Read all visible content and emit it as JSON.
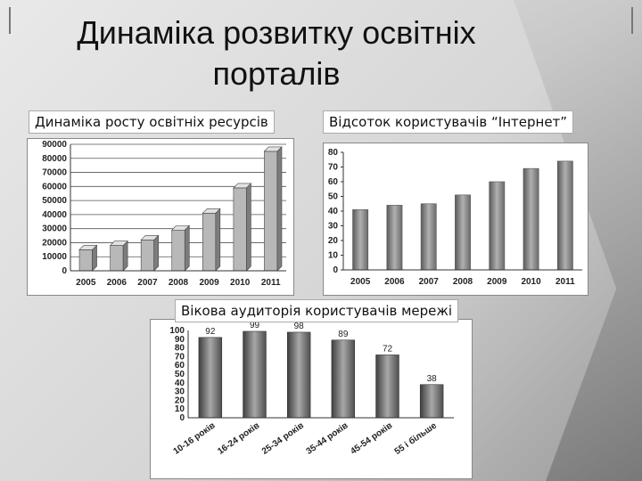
{
  "title": "Динаміка розвитку освітніх порталів",
  "chart_data": [
    {
      "type": "bar",
      "title": "Динаміка росту освітніх ресурсів",
      "categories": [
        "2005",
        "2006",
        "2007",
        "2008",
        "2009",
        "2010",
        "2011"
      ],
      "values": [
        15000,
        18000,
        22000,
        29000,
        41000,
        59000,
        85000
      ],
      "ylim": [
        0,
        90000
      ],
      "yticks": [
        "0",
        "10000",
        "20000",
        "30000",
        "40000",
        "50000",
        "60000",
        "70000",
        "80000",
        "90000"
      ],
      "grid": true,
      "colors": {
        "bar_front": "#b8b8b8",
        "bar_side": "#7c7c7c",
        "bar_top": "#e2e2e2"
      }
    },
    {
      "type": "bar",
      "title": "Відсоток користувачів “Інтернет”",
      "categories": [
        "2005",
        "2006",
        "2007",
        "2008",
        "2009",
        "2010",
        "2011"
      ],
      "values": [
        41,
        44,
        45,
        51,
        60,
        69,
        74
      ],
      "ylim": [
        0,
        80
      ],
      "yticks": [
        "0",
        "10",
        "20",
        "30",
        "40",
        "50",
        "60",
        "70",
        "80"
      ],
      "grid": false,
      "colors": {
        "bar_fill": "#7a7a7a"
      }
    },
    {
      "type": "bar",
      "title": "Вікова аудиторія користувачів мережі",
      "categories": [
        "10-16 років",
        "16-24 років",
        "25-34 років",
        "35-44 років",
        "45-54 років",
        "55 і більше"
      ],
      "values": [
        92,
        99,
        98,
        89,
        72,
        38
      ],
      "data_labels": [
        "92",
        "99",
        "98",
        "89",
        "72",
        "38"
      ],
      "ylim": [
        0,
        100
      ],
      "yticks": [
        "0",
        "10",
        "20",
        "30",
        "40",
        "50",
        "60",
        "70",
        "80",
        "90",
        "100"
      ],
      "grid": false,
      "colors": {
        "bar_fill": "#6d6d6d"
      }
    }
  ]
}
